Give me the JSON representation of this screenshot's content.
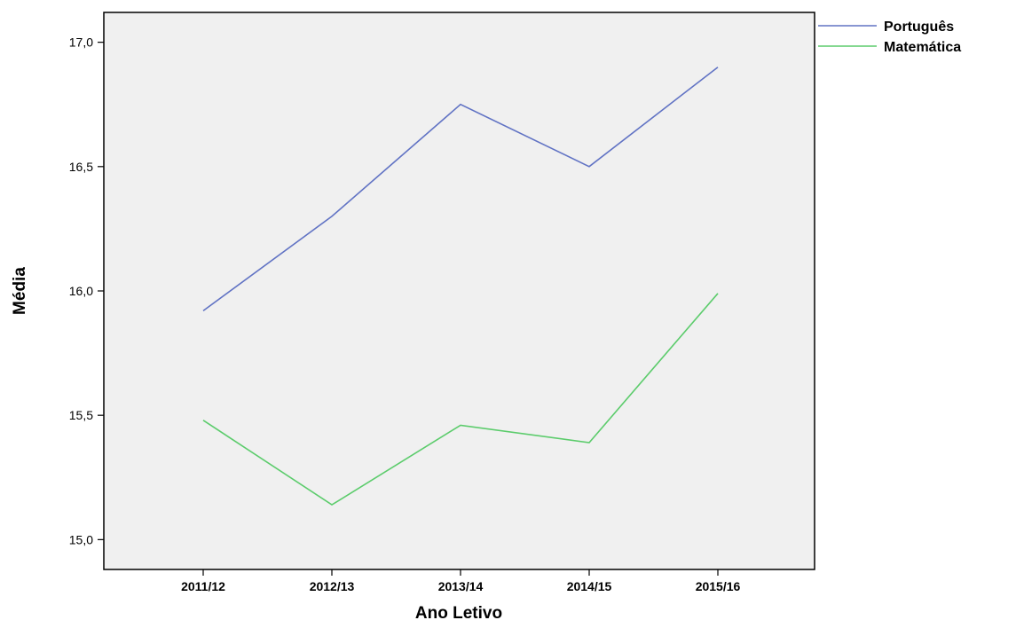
{
  "chart_data": {
    "type": "line",
    "categories": [
      "2011/12",
      "2012/13",
      "2013/14",
      "2014/15",
      "2015/16"
    ],
    "series": [
      {
        "name": "Português",
        "values": [
          15.92,
          16.3,
          16.75,
          16.5,
          16.9
        ],
        "color": "#6173c4"
      },
      {
        "name": "Matemática",
        "values": [
          15.48,
          15.14,
          15.46,
          15.39,
          15.99
        ],
        "color": "#5ccc6c"
      }
    ],
    "title": "",
    "xlabel": "Ano Letivo",
    "ylabel": "Média",
    "ylim": [
      14.88,
      17.12
    ],
    "yticks": [
      "15,0",
      "15,5",
      "16,0",
      "16,5",
      "17,0"
    ],
    "grid": false,
    "legend": "top-right",
    "plot_background": "#f0f0f0"
  }
}
